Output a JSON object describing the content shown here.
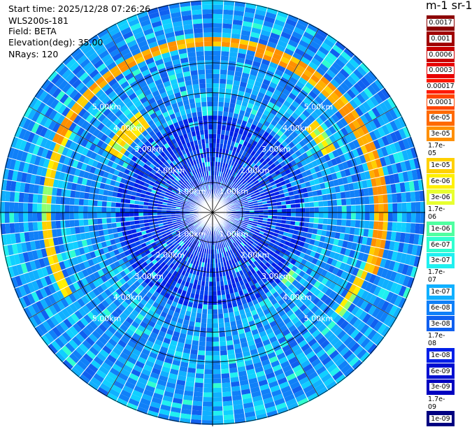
{
  "header": {
    "start_time": "Start time: 2025/12/28 07:26:26",
    "instrument": "WLS200s-181",
    "field": "Field: BETA",
    "elevation": "Elevation(deg): 35.00",
    "nrays": "NRays: 120",
    "units": "m-1 sr-1"
  },
  "chart_data": {
    "type": "heatmap",
    "projection": "PPI polar (azimuth × range)",
    "field": "BETA",
    "elevation_deg": 35.0,
    "n_rays": 120,
    "range_rings_km": [
      1,
      2,
      3,
      4,
      5
    ],
    "range_ring_labels": [
      "1.00km",
      "2.00km",
      "3.00km",
      "4.00km",
      "5.00km"
    ],
    "max_range_km": 7.1,
    "colorbar": {
      "scale": "log",
      "labels": [
        "0.0017",
        "0.001",
        "0.0006",
        "0.0003",
        "0.00017",
        "0.0001",
        "6e-05",
        "3e-05",
        "1.7e-05",
        "1e-05",
        "6e-06",
        "3e-06",
        "1.7e-06",
        "1e-06",
        "6e-07",
        "3e-07",
        "1.7e-07",
        "1e-07",
        "6e-08",
        "3e-08",
        "1.7e-08",
        "1e-08",
        "6e-09",
        "3e-09",
        "1.7e-09",
        "1e-09"
      ],
      "colors": [
        "#8b0000",
        "#a00000",
        "#c80000",
        "#e80000",
        "#ff1a00",
        "#ff4500",
        "#ff6a00",
        "#ff9000",
        "#ffb000",
        "#ffd000",
        "#fff000",
        "#e8ff30",
        "#90ff70",
        "#50ffa0",
        "#30ffd0",
        "#20f0f0",
        "#10d0ff",
        "#10b0ff",
        "#1080f8",
        "#1060f0",
        "#0040f0",
        "#0020e8",
        "#0010d0",
        "#0000c0",
        "#0000a0",
        "#000080"
      ]
    },
    "features": [
      {
        "name": "ring",
        "range_km": [
          5.55,
          5.85
        ],
        "azimuth_deg": [
          295,
          15
        ],
        "level": "orange"
      },
      {
        "name": "ring",
        "range_km": [
          5.45,
          5.8
        ],
        "azimuth_deg": [
          15,
          110
        ],
        "level": "orange"
      },
      {
        "name": "ring",
        "range_km": [
          5.4,
          5.75
        ],
        "azimuth_deg": [
          240,
          300
        ],
        "level": "yellow"
      },
      {
        "name": "ring",
        "range_km": [
          5.3,
          5.6
        ],
        "azimuth_deg": [
          110,
          130
        ],
        "level": "yellow"
      },
      {
        "name": "patch",
        "range_km": [
          3.6,
          4.1
        ],
        "azimuth_deg": [
          300,
          325
        ],
        "level": "yellow"
      },
      {
        "name": "patch",
        "range_km": [
          4.1,
          4.6
        ],
        "azimuth_deg": [
          48,
          62
        ],
        "level": "yellow"
      },
      {
        "name": "patch",
        "range_km": [
          3.2,
          3.6
        ],
        "azimuth_deg": [
          125,
          135
        ],
        "level": "green"
      }
    ]
  }
}
